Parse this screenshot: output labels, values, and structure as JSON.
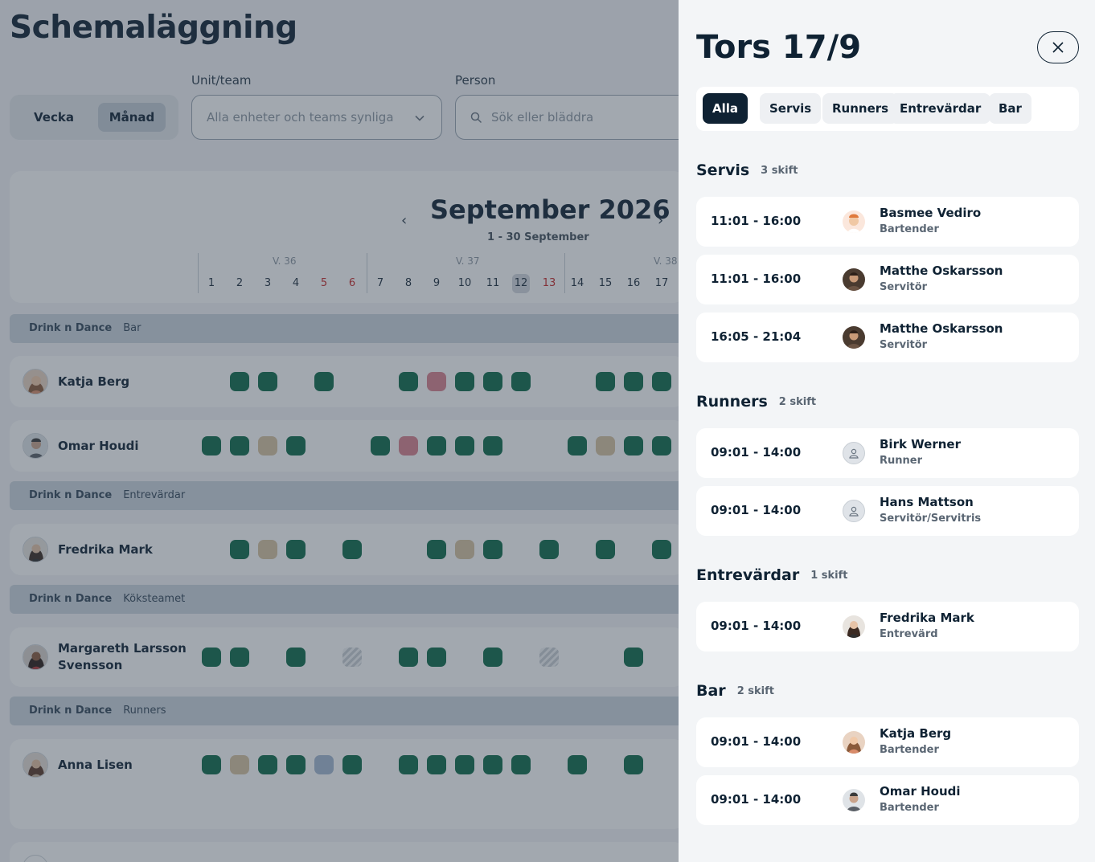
{
  "page": {
    "title": "Schemaläggning"
  },
  "view_toggle": {
    "week": "Vecka",
    "month": "Månad",
    "selected": "Månad"
  },
  "filters": {
    "unit_label": "Unit/team",
    "unit_placeholder": "Alla enheter och teams synliga",
    "person_label": "Person",
    "person_placeholder": "Sök eller bläddra"
  },
  "calendar": {
    "month_title": "September 2026",
    "range": "1 - 30 September",
    "weeks": [
      "V. 36",
      "V. 37",
      "V. 38"
    ],
    "days": [
      "1",
      "2",
      "3",
      "4",
      "5",
      "6",
      "7",
      "8",
      "9",
      "10",
      "11",
      "12",
      "13",
      "14",
      "15",
      "16",
      "17"
    ],
    "weekend_days": [
      "5",
      "6",
      "13"
    ],
    "today": "12"
  },
  "groups": [
    {
      "org": "Drink n Dance",
      "team": "Bar"
    },
    {
      "org": "Drink n Dance",
      "team": "Entrevärdar"
    },
    {
      "org": "Drink n Dance",
      "team": "Köksteamet"
    },
    {
      "org": "Drink n Dance",
      "team": "Runners"
    }
  ],
  "people": [
    {
      "name": "Katja Berg",
      "shifts": [
        {
          "day": 2,
          "status": "worked"
        },
        {
          "day": 3,
          "status": "worked"
        },
        {
          "day": 5,
          "status": "worked"
        },
        {
          "day": 8,
          "status": "worked"
        },
        {
          "day": 9,
          "status": "sick"
        },
        {
          "day": 10,
          "status": "worked"
        },
        {
          "day": 11,
          "status": "worked"
        },
        {
          "day": 12,
          "status": "worked"
        },
        {
          "day": 15,
          "status": "worked"
        },
        {
          "day": 16,
          "status": "worked"
        },
        {
          "day": 17,
          "status": "worked"
        }
      ]
    },
    {
      "name": "Omar Houdi",
      "shifts": [
        {
          "day": 1,
          "status": "worked"
        },
        {
          "day": 2,
          "status": "worked"
        },
        {
          "day": 3,
          "status": "leave"
        },
        {
          "day": 4,
          "status": "worked"
        },
        {
          "day": 7,
          "status": "worked"
        },
        {
          "day": 8,
          "status": "sick"
        },
        {
          "day": 9,
          "status": "worked"
        },
        {
          "day": 10,
          "status": "worked"
        },
        {
          "day": 11,
          "status": "worked"
        },
        {
          "day": 14,
          "status": "worked"
        },
        {
          "day": 15,
          "status": "leave"
        },
        {
          "day": 16,
          "status": "worked"
        },
        {
          "day": 17,
          "status": "worked"
        }
      ]
    },
    {
      "name": "Fredrika Mark",
      "shifts": [
        {
          "day": 2,
          "status": "worked"
        },
        {
          "day": 3,
          "status": "leave"
        },
        {
          "day": 4,
          "status": "worked"
        },
        {
          "day": 6,
          "status": "worked"
        },
        {
          "day": 9,
          "status": "worked"
        },
        {
          "day": 10,
          "status": "leave"
        },
        {
          "day": 11,
          "status": "worked"
        },
        {
          "day": 13,
          "status": "worked"
        },
        {
          "day": 15,
          "status": "worked"
        },
        {
          "day": 17,
          "status": "worked"
        }
      ]
    },
    {
      "name": "Margareth Larsson Svensson",
      "name_line1": "Margareth Larsson",
      "name_line2": "Svensson",
      "shifts": [
        {
          "day": 1,
          "status": "worked"
        },
        {
          "day": 2,
          "status": "worked"
        },
        {
          "day": 4,
          "status": "worked"
        },
        {
          "day": 6,
          "status": "unavailable"
        },
        {
          "day": 8,
          "status": "worked"
        },
        {
          "day": 9,
          "status": "worked"
        },
        {
          "day": 11,
          "status": "worked"
        },
        {
          "day": 13,
          "status": "unavailable"
        },
        {
          "day": 16,
          "status": "worked"
        }
      ]
    },
    {
      "name": "Anna Lisen",
      "shifts": [
        {
          "day": 1,
          "status": "worked"
        },
        {
          "day": 2,
          "status": "leave"
        },
        {
          "day": 3,
          "status": "worked"
        },
        {
          "day": 4,
          "status": "worked"
        },
        {
          "day": 5,
          "status": "other"
        },
        {
          "day": 6,
          "status": "worked"
        },
        {
          "day": 8,
          "status": "worked"
        },
        {
          "day": 9,
          "status": "worked"
        },
        {
          "day": 10,
          "status": "worked"
        },
        {
          "day": 11,
          "status": "worked"
        },
        {
          "day": 12,
          "status": "worked"
        },
        {
          "day": 14,
          "status": "worked"
        },
        {
          "day": 16,
          "status": "worked"
        }
      ]
    }
  ],
  "status_colors": {
    "worked": "#0e6b4a",
    "leave": "#d8c3a1",
    "sick": "#d9818e",
    "other": "#a4b9d1"
  },
  "panel": {
    "title": "Tors 17/9",
    "filter_chips": [
      "Alla",
      "Servis",
      "Runners",
      "Entrevärdar",
      "Bar"
    ],
    "active_chip": "Alla",
    "sections": [
      {
        "title": "Servis",
        "count": "3 skift",
        "shifts": [
          {
            "time": "11:01 - 16:00",
            "name": "Basmee Vediro",
            "role": "Bartender"
          },
          {
            "time": "11:01 - 16:00",
            "name": "Matthe Oskarsson",
            "role": "Servitör"
          },
          {
            "time": "16:05 - 21:04",
            "name": "Matthe Oskarsson",
            "role": "Servitör"
          }
        ]
      },
      {
        "title": "Runners",
        "count": "2 skift",
        "shifts": [
          {
            "time": "09:01 - 14:00",
            "name": "Birk Werner",
            "role": "Runner"
          },
          {
            "time": "09:01 - 14:00",
            "name": "Hans Mattson",
            "role": "Servitör/Servitris"
          }
        ]
      },
      {
        "title": "Entrevärdar",
        "count": "1 skift",
        "shifts": [
          {
            "time": "09:01 - 14:00",
            "name": "Fredrika Mark",
            "role": "Entrevärd"
          }
        ]
      },
      {
        "title": "Bar",
        "count": "2 skift",
        "shifts": [
          {
            "time": "09:01 - 14:00",
            "name": "Katja Berg",
            "role": "Bartender"
          },
          {
            "time": "09:01 - 14:00",
            "name": "Omar Houdi",
            "role": "Bartender"
          }
        ]
      }
    ]
  },
  "icons": {
    "prev": "chevron-left-icon",
    "next": "chevron-right-icon",
    "close": "close-icon",
    "search": "search-icon",
    "dropdown": "chevron-down-icon",
    "placeholder_avatar": "user-icon"
  }
}
